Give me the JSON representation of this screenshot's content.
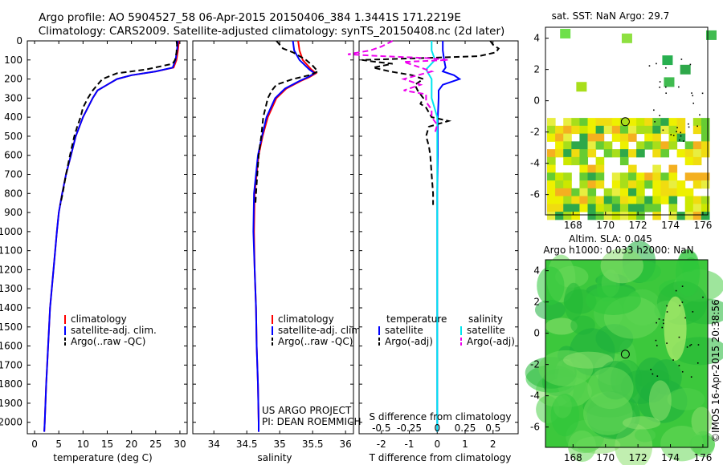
{
  "header": {
    "title_line1": "Argo profile: AO 5904527_58 06-Apr-2015 20150406_384 1.3441S 171.2219E",
    "title_line2": "Climatology: CARS2009. Satellite-adjusted climatology: synTS_20150408.nc (2d later)"
  },
  "colors": {
    "climatology": "#ff0000",
    "satellite": "#0000ff",
    "argo": "#000000",
    "salinity_sat": "#00e5ee",
    "salinity_argo": "#ee00ee"
  },
  "credits": {
    "project": "US ARGO PROJECT",
    "pi": "PI: DEAN ROEMMICH",
    "stamp": "©IMOS 16-Apr-2015 20:38:56"
  },
  "depth_ticks": [
    0,
    100,
    200,
    300,
    400,
    500,
    600,
    700,
    800,
    900,
    1000,
    1100,
    1200,
    1300,
    1400,
    1500,
    1600,
    1700,
    1800,
    1900,
    2000
  ],
  "chart_data": [
    {
      "id": "temperature",
      "type": "line",
      "xlabel": "temperature (deg C)",
      "ylim": [
        0,
        2060
      ],
      "xlim": [
        -1.5,
        31.5
      ],
      "xticks": [
        0,
        5,
        10,
        15,
        20,
        25,
        30
      ],
      "legend": [
        "climatology",
        "satellite-adj. clim.",
        "Argo(..raw -QC)"
      ],
      "series": [
        {
          "name": "climatology",
          "depth": [
            0,
            50,
            100,
            140,
            160,
            180,
            200,
            230,
            260,
            300,
            400,
            500,
            600,
            700,
            800,
            900,
            1000,
            1200,
            1400,
            1600,
            1800,
            2000,
            2050
          ],
          "values": [
            29.8,
            29.6,
            29.3,
            28.7,
            25,
            20,
            17,
            15,
            13,
            12,
            10,
            8.5,
            7.5,
            6.5,
            5.7,
            5,
            4.6,
            3.9,
            3.2,
            2.8,
            2.4,
            2.1,
            2.0
          ]
        },
        {
          "name": "satellite-adj. clim.",
          "depth": [
            0,
            50,
            100,
            140,
            160,
            180,
            200,
            230,
            260,
            300,
            400,
            500,
            600,
            700,
            800,
            900,
            1000,
            1200,
            1400,
            1600,
            1800,
            2000,
            2050
          ],
          "values": [
            29.6,
            29.4,
            29.1,
            28.5,
            25,
            20,
            17,
            15,
            13,
            12,
            10,
            8.5,
            7.5,
            6.5,
            5.7,
            5,
            4.6,
            3.9,
            3.2,
            2.8,
            2.4,
            2.1,
            2.0
          ]
        },
        {
          "name": "Argo(..raw -QC)",
          "depth": [
            0,
            20,
            60,
            100,
            120,
            150,
            170,
            200,
            230,
            260,
            300,
            350,
            400,
            450,
            500,
            600,
            700,
            800,
            860
          ],
          "values": [
            29.3,
            29.4,
            29.3,
            29,
            28.5,
            23,
            17,
            14,
            13,
            12,
            11,
            10,
            9.5,
            8.8,
            8.2,
            7.3,
            6.5,
            5.8,
            5.3
          ]
        }
      ]
    },
    {
      "id": "salinity",
      "type": "line",
      "xlabel": "salinity",
      "ylim": [
        0,
        2060
      ],
      "xlim": [
        33.68,
        36.12
      ],
      "xticks": [
        34,
        34.5,
        35,
        35.5,
        36
      ],
      "legend": [
        "climatology",
        "satellite-adj. clim.",
        "Argo(..raw -QC)"
      ],
      "series": [
        {
          "name": "climatology",
          "depth": [
            0,
            50,
            100,
            150,
            170,
            190,
            210,
            250,
            300,
            400,
            500,
            600,
            800,
            1000,
            1200,
            1400,
            1600,
            1800,
            2000,
            2050
          ],
          "values": [
            35.28,
            35.3,
            35.35,
            35.48,
            35.55,
            35.45,
            35.32,
            35.1,
            34.95,
            34.82,
            34.74,
            34.68,
            34.62,
            34.61,
            34.62,
            34.64,
            34.65,
            34.67,
            34.68,
            34.68
          ]
        },
        {
          "name": "satellite-adj. clim.",
          "depth": [
            0,
            50,
            100,
            150,
            170,
            190,
            210,
            250,
            300,
            400,
            500,
            600,
            800,
            1000,
            1200,
            1400,
            1600,
            1800,
            2000,
            2050
          ],
          "values": [
            35.2,
            35.22,
            35.3,
            35.45,
            35.53,
            35.43,
            35.3,
            35.08,
            34.93,
            34.8,
            34.73,
            34.67,
            34.61,
            34.6,
            34.62,
            34.64,
            34.65,
            34.67,
            34.68,
            34.68
          ]
        },
        {
          "name": "Argo(..raw -QC)",
          "depth": [
            0,
            40,
            60,
            80,
            100,
            130,
            160,
            180,
            200,
            230,
            260,
            300,
            400,
            500,
            600,
            700,
            800,
            860
          ],
          "values": [
            34.95,
            35.05,
            35.2,
            35.3,
            35.4,
            35.5,
            35.58,
            35.45,
            35.2,
            34.95,
            34.88,
            34.82,
            34.75,
            34.72,
            34.68,
            34.66,
            34.64,
            34.63
          ]
        }
      ]
    },
    {
      "id": "difference",
      "type": "line",
      "xlabel": "T difference from climatology",
      "top_label": "S difference from climatology",
      "ylim": [
        0,
        2060
      ],
      "xlim": [
        -2.8,
        2.9
      ],
      "xticks": [
        -2,
        -1,
        0,
        1,
        2
      ],
      "top_ticks": [
        "-0.5",
        "-0.25",
        "0",
        "0.25",
        "0.5"
      ],
      "legend_headers": [
        "temperature",
        "salinity"
      ],
      "legend": [
        "satellite",
        "Argo(-adj)",
        "satellite",
        "Argo(-adj)"
      ],
      "series": [
        {
          "name": "temperature satellite",
          "depth": [
            0,
            50,
            100,
            140,
            160,
            180,
            200,
            230,
            260,
            300,
            400,
            600,
            800,
            1000,
            1400,
            1800,
            2050
          ],
          "values": [
            0.2,
            0.2,
            0.25,
            0.3,
            0.2,
            0.6,
            0.8,
            0.2,
            0.05,
            0.05,
            0.02,
            0.02,
            0,
            0,
            0,
            0,
            0
          ]
        },
        {
          "name": "temperature Argo(-adj)",
          "depth": [
            0,
            20,
            40,
            60,
            70,
            80,
            90,
            100,
            110,
            120,
            140,
            160,
            180,
            200,
            230,
            260,
            300,
            330,
            350,
            400,
            420,
            450,
            500,
            550,
            600,
            700,
            800,
            860
          ],
          "values": [
            1.9,
            2.0,
            2.2,
            2.1,
            1.8,
            1.5,
            -0.5,
            -2.7,
            -2.2,
            -1.6,
            -2.3,
            -1.7,
            -0.9,
            -0.5,
            -0.8,
            -0.7,
            -0.5,
            -0.6,
            -0.4,
            -0.2,
            0.4,
            -0.3,
            -0.4,
            -0.3,
            -0.25,
            -0.2,
            -0.15,
            -0.15
          ]
        },
        {
          "name": "salinity satellite",
          "depth": [
            0,
            50,
            100,
            150,
            200,
            250,
            300,
            400,
            500,
            600,
            800,
            1000,
            1200,
            1400,
            1600,
            1800,
            2000,
            2050
          ],
          "values": [
            -0.05,
            -0.05,
            -0.02,
            -0.1,
            -0.05,
            -0.05,
            -0.05,
            0,
            0,
            0,
            0,
            0,
            0,
            0,
            0,
            0,
            0,
            0
          ]
        },
        {
          "name": "salinity Argo(-adj)",
          "depth": [
            0,
            30,
            50,
            70,
            80,
            90,
            100,
            110,
            130,
            160,
            200,
            230,
            260,
            280,
            320,
            360,
            400,
            440,
            480
          ],
          "values": [
            -0.4,
            -0.5,
            -0.6,
            -0.8,
            -0.5,
            -0.1,
            0.1,
            -0.3,
            -0.2,
            -0.05,
            -0.3,
            -0.15,
            -0.3,
            -0.1,
            -0.1,
            -0.05,
            -0.05,
            0,
            -0.02
          ]
        }
      ]
    },
    {
      "id": "sst_map",
      "type": "heatmap",
      "title": "sat. SST: NaN Argo: 29.7",
      "xlim": [
        166.3,
        176.3
      ],
      "ylim": [
        -7.3,
        4.7
      ],
      "xticks": [
        168,
        170,
        172,
        174,
        176
      ],
      "yticks": [
        -6,
        -4,
        -2,
        0,
        2,
        4
      ],
      "argo_position": {
        "lon": 171.22,
        "lat": -1.34
      }
    },
    {
      "id": "sla_map",
      "type": "heatmap",
      "title": "Altim. SLA: 0.045",
      "subtitle": "Argo h1000: 0.033 h2000: NaN",
      "xlim": [
        166.3,
        176.3
      ],
      "ylim": [
        -7.3,
        4.7
      ],
      "xticks": [
        168,
        170,
        172,
        174,
        176
      ],
      "yticks": [
        -6,
        -4,
        -2,
        0,
        2,
        4
      ],
      "argo_position": {
        "lon": 171.22,
        "lat": -1.34
      }
    }
  ]
}
